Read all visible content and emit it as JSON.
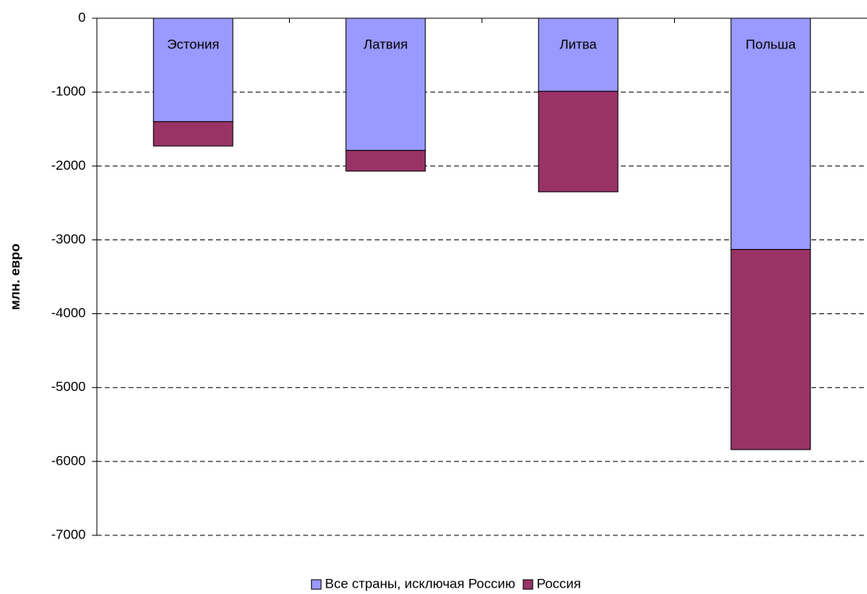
{
  "chart_data": {
    "type": "stacked_bar",
    "y_label": "млн. евро",
    "categories": [
      "Эстония",
      "Латвия",
      "Литва",
      "Польша"
    ],
    "series": [
      {
        "name": "Все страны, исключая Россию",
        "color": "#9999ff",
        "values": [
          -1400,
          -1790,
          -990,
          -3130
        ]
      },
      {
        "name": "Россия",
        "color": "#993366",
        "values": [
          -330,
          -280,
          -1360,
          -2710
        ]
      }
    ],
    "ylim": [
      -7000,
      0
    ],
    "yticks": [
      0,
      -1000,
      -2000,
      -3000,
      -4000,
      -5000,
      -6000,
      -7000
    ],
    "grid": true
  }
}
